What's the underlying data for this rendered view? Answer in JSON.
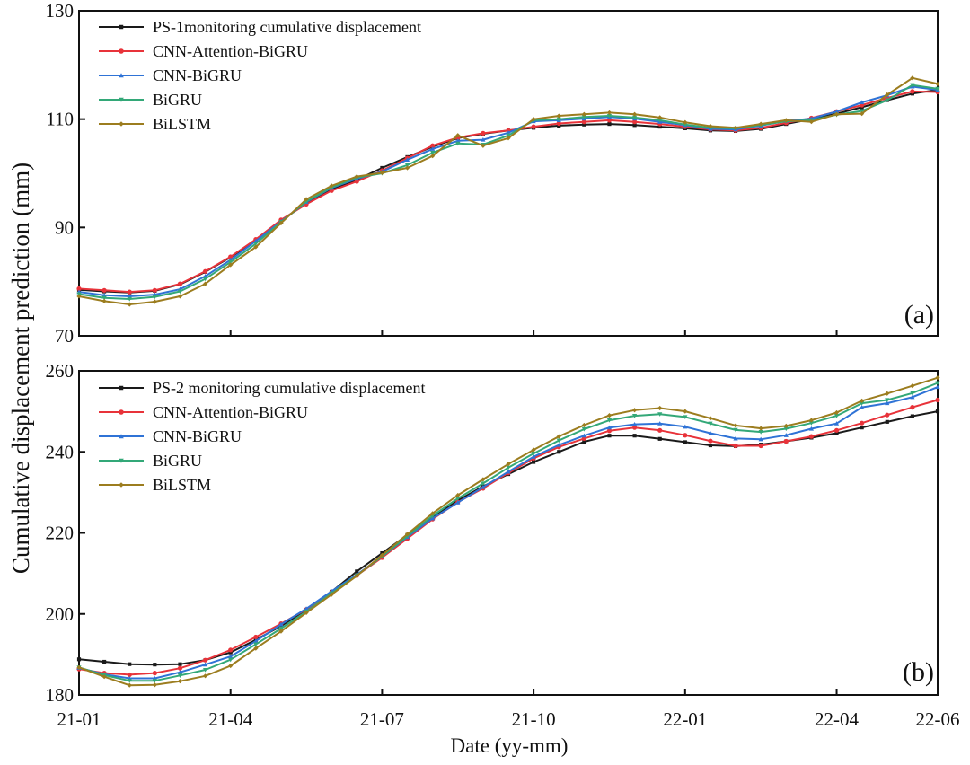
{
  "ylabel": "Cumulative displacement prediction (mm)",
  "xlabel": "Date (yy-mm)",
  "x_ticks": [
    "21-01",
    "21-04",
    "21-07",
    "21-10",
    "22-01",
    "22-04",
    "22-06"
  ],
  "colors": {
    "monitoring": "#1a1a1a",
    "cnn_attention_bigru": "#e8333a",
    "cnn_bigru": "#2f73d6",
    "bigru": "#33a878",
    "bilstm": "#9c7d1f"
  },
  "chart_data": [
    {
      "type": "line",
      "panel": "(a)",
      "ylim": [
        70,
        130
      ],
      "y_ticks": [
        70,
        90,
        110,
        130
      ],
      "x": [
        0,
        0.5,
        1,
        1.5,
        2,
        2.5,
        3,
        3.5,
        4,
        4.5,
        5,
        5.5,
        6,
        6.5,
        7,
        7.5,
        8,
        8.5,
        9,
        9.5,
        10,
        10.5,
        11,
        11.5,
        12,
        12.5,
        13,
        13.5,
        14,
        14.5,
        15,
        15.5,
        16,
        16.5,
        17
      ],
      "series": [
        {
          "name": "PS-1monitoring cumulative displacement",
          "values": [
            78.5,
            78.2,
            78.0,
            78.3,
            79.5,
            81.8,
            84.5,
            87.6,
            91.2,
            94.5,
            97.0,
            98.8,
            101.0,
            103.0,
            104.9,
            106.5,
            107.3,
            107.9,
            108.4,
            108.8,
            109.0,
            109.1,
            108.9,
            108.6,
            108.3,
            107.9,
            107.8,
            108.2,
            109.1,
            110.0,
            111.0,
            112.2,
            113.5,
            114.7,
            115.4
          ]
        },
        {
          "name": "CNN-Attention-BiGRU",
          "values": [
            78.7,
            78.4,
            78.1,
            78.4,
            79.6,
            81.9,
            84.6,
            87.8,
            91.4,
            94.3,
            96.8,
            98.5,
            100.5,
            102.8,
            105.1,
            106.6,
            107.4,
            107.9,
            108.6,
            109.2,
            109.5,
            109.8,
            109.5,
            109.1,
            108.6,
            108.1,
            107.9,
            108.4,
            109.3,
            110.2,
            111.4,
            112.6,
            113.9,
            115.1,
            115.0
          ]
        },
        {
          "name": "CNN-BiGRU",
          "values": [
            78.1,
            77.5,
            77.3,
            77.6,
            78.6,
            81.0,
            84.0,
            87.5,
            91.1,
            94.7,
            97.3,
            99.0,
            100.3,
            102.5,
            104.5,
            106.0,
            106.2,
            107.5,
            109.6,
            109.8,
            110.1,
            110.4,
            110.1,
            109.5,
            108.9,
            108.2,
            108.1,
            108.8,
            109.7,
            110.1,
            111.4,
            113.1,
            114.4,
            116.0,
            115.4
          ]
        },
        {
          "name": "BiGRU",
          "values": [
            77.7,
            77.0,
            76.8,
            77.2,
            78.2,
            80.5,
            83.6,
            87.0,
            91.0,
            94.8,
            97.4,
            99.2,
            100.0,
            101.5,
            103.8,
            105.5,
            105.3,
            107.0,
            109.8,
            110.0,
            110.4,
            110.6,
            110.3,
            109.8,
            109.0,
            108.4,
            108.3,
            108.9,
            109.6,
            109.8,
            110.8,
            111.5,
            113.5,
            116.3,
            115.6
          ]
        },
        {
          "name": "BiLSTM",
          "values": [
            77.3,
            76.4,
            75.8,
            76.3,
            77.3,
            79.6,
            83.1,
            86.4,
            90.8,
            95.2,
            97.7,
            99.4,
            100.1,
            101.0,
            103.2,
            107.0,
            105.1,
            106.5,
            110.0,
            110.6,
            110.9,
            111.2,
            110.9,
            110.3,
            109.4,
            108.7,
            108.4,
            109.1,
            109.8,
            109.5,
            110.9,
            111.0,
            114.5,
            117.6,
            116.5
          ]
        }
      ]
    },
    {
      "type": "line",
      "panel": "(b)",
      "ylim": [
        180,
        260
      ],
      "y_ticks": [
        180,
        200,
        220,
        240,
        260
      ],
      "x": [
        0,
        0.5,
        1,
        1.5,
        2,
        2.5,
        3,
        3.5,
        4,
        4.5,
        5,
        5.5,
        6,
        6.5,
        7,
        7.5,
        8,
        8.5,
        9,
        9.5,
        10,
        10.5,
        11,
        11.5,
        12,
        12.5,
        13,
        13.5,
        14,
        14.5,
        15,
        15.5,
        16,
        16.5,
        17
      ],
      "series": [
        {
          "name": "PS-2 monitoring cumulative displacement",
          "values": [
            188.8,
            188.2,
            187.6,
            187.5,
            187.6,
            188.6,
            190.5,
            193.6,
            197.0,
            201.0,
            205.5,
            210.5,
            215.0,
            219.5,
            224.0,
            228.0,
            231.5,
            234.5,
            237.5,
            240.0,
            242.5,
            244.0,
            244.0,
            243.2,
            242.4,
            241.6,
            241.4,
            241.8,
            242.6,
            243.5,
            244.6,
            246.0,
            247.4,
            248.8,
            250.0
          ]
        },
        {
          "name": "CNN-Attention-BiGRU",
          "values": [
            186.4,
            185.4,
            185.0,
            185.4,
            186.6,
            188.6,
            191.1,
            194.3,
            197.6,
            201.1,
            205.4,
            209.5,
            213.9,
            218.6,
            223.4,
            227.6,
            231.0,
            234.8,
            238.4,
            241.2,
            243.3,
            245.2,
            246.0,
            245.3,
            244.1,
            242.7,
            241.5,
            241.5,
            242.6,
            243.8,
            245.3,
            247.1,
            249.1,
            251.0,
            252.8
          ]
        },
        {
          "name": "CNN-BiGRU",
          "values": [
            186.7,
            185.1,
            184.1,
            184.1,
            185.6,
            187.5,
            189.5,
            193.3,
            197.4,
            201.3,
            205.6,
            209.7,
            214.2,
            219.0,
            223.6,
            227.5,
            231.3,
            235.1,
            238.8,
            241.7,
            244.0,
            246.0,
            246.8,
            247.0,
            246.2,
            244.6,
            243.3,
            243.1,
            244.1,
            245.7,
            247.0,
            251.0,
            252.0,
            253.5,
            256.0
          ]
        },
        {
          "name": "BiGRU",
          "values": [
            186.8,
            184.9,
            183.5,
            183.5,
            184.8,
            186.2,
            188.7,
            192.5,
            196.4,
            200.6,
            205.1,
            209.5,
            214.2,
            219.2,
            224.2,
            228.5,
            232.2,
            236.1,
            239.6,
            242.8,
            245.6,
            247.8,
            248.9,
            249.3,
            248.6,
            247.0,
            245.4,
            244.9,
            245.7,
            247.1,
            248.9,
            252.0,
            252.8,
            254.5,
            257.0
          ]
        },
        {
          "name": "BiLSTM",
          "values": [
            186.8,
            184.5,
            182.4,
            182.5,
            183.4,
            184.7,
            187.2,
            191.5,
            195.7,
            200.3,
            204.8,
            209.4,
            214.5,
            219.7,
            224.8,
            229.3,
            233.2,
            237.0,
            240.5,
            243.8,
            246.6,
            249.0,
            250.3,
            250.8,
            250.0,
            248.3,
            246.5,
            245.8,
            246.4,
            247.8,
            249.7,
            252.6,
            254.4,
            256.3,
            258.3
          ]
        }
      ]
    }
  ]
}
